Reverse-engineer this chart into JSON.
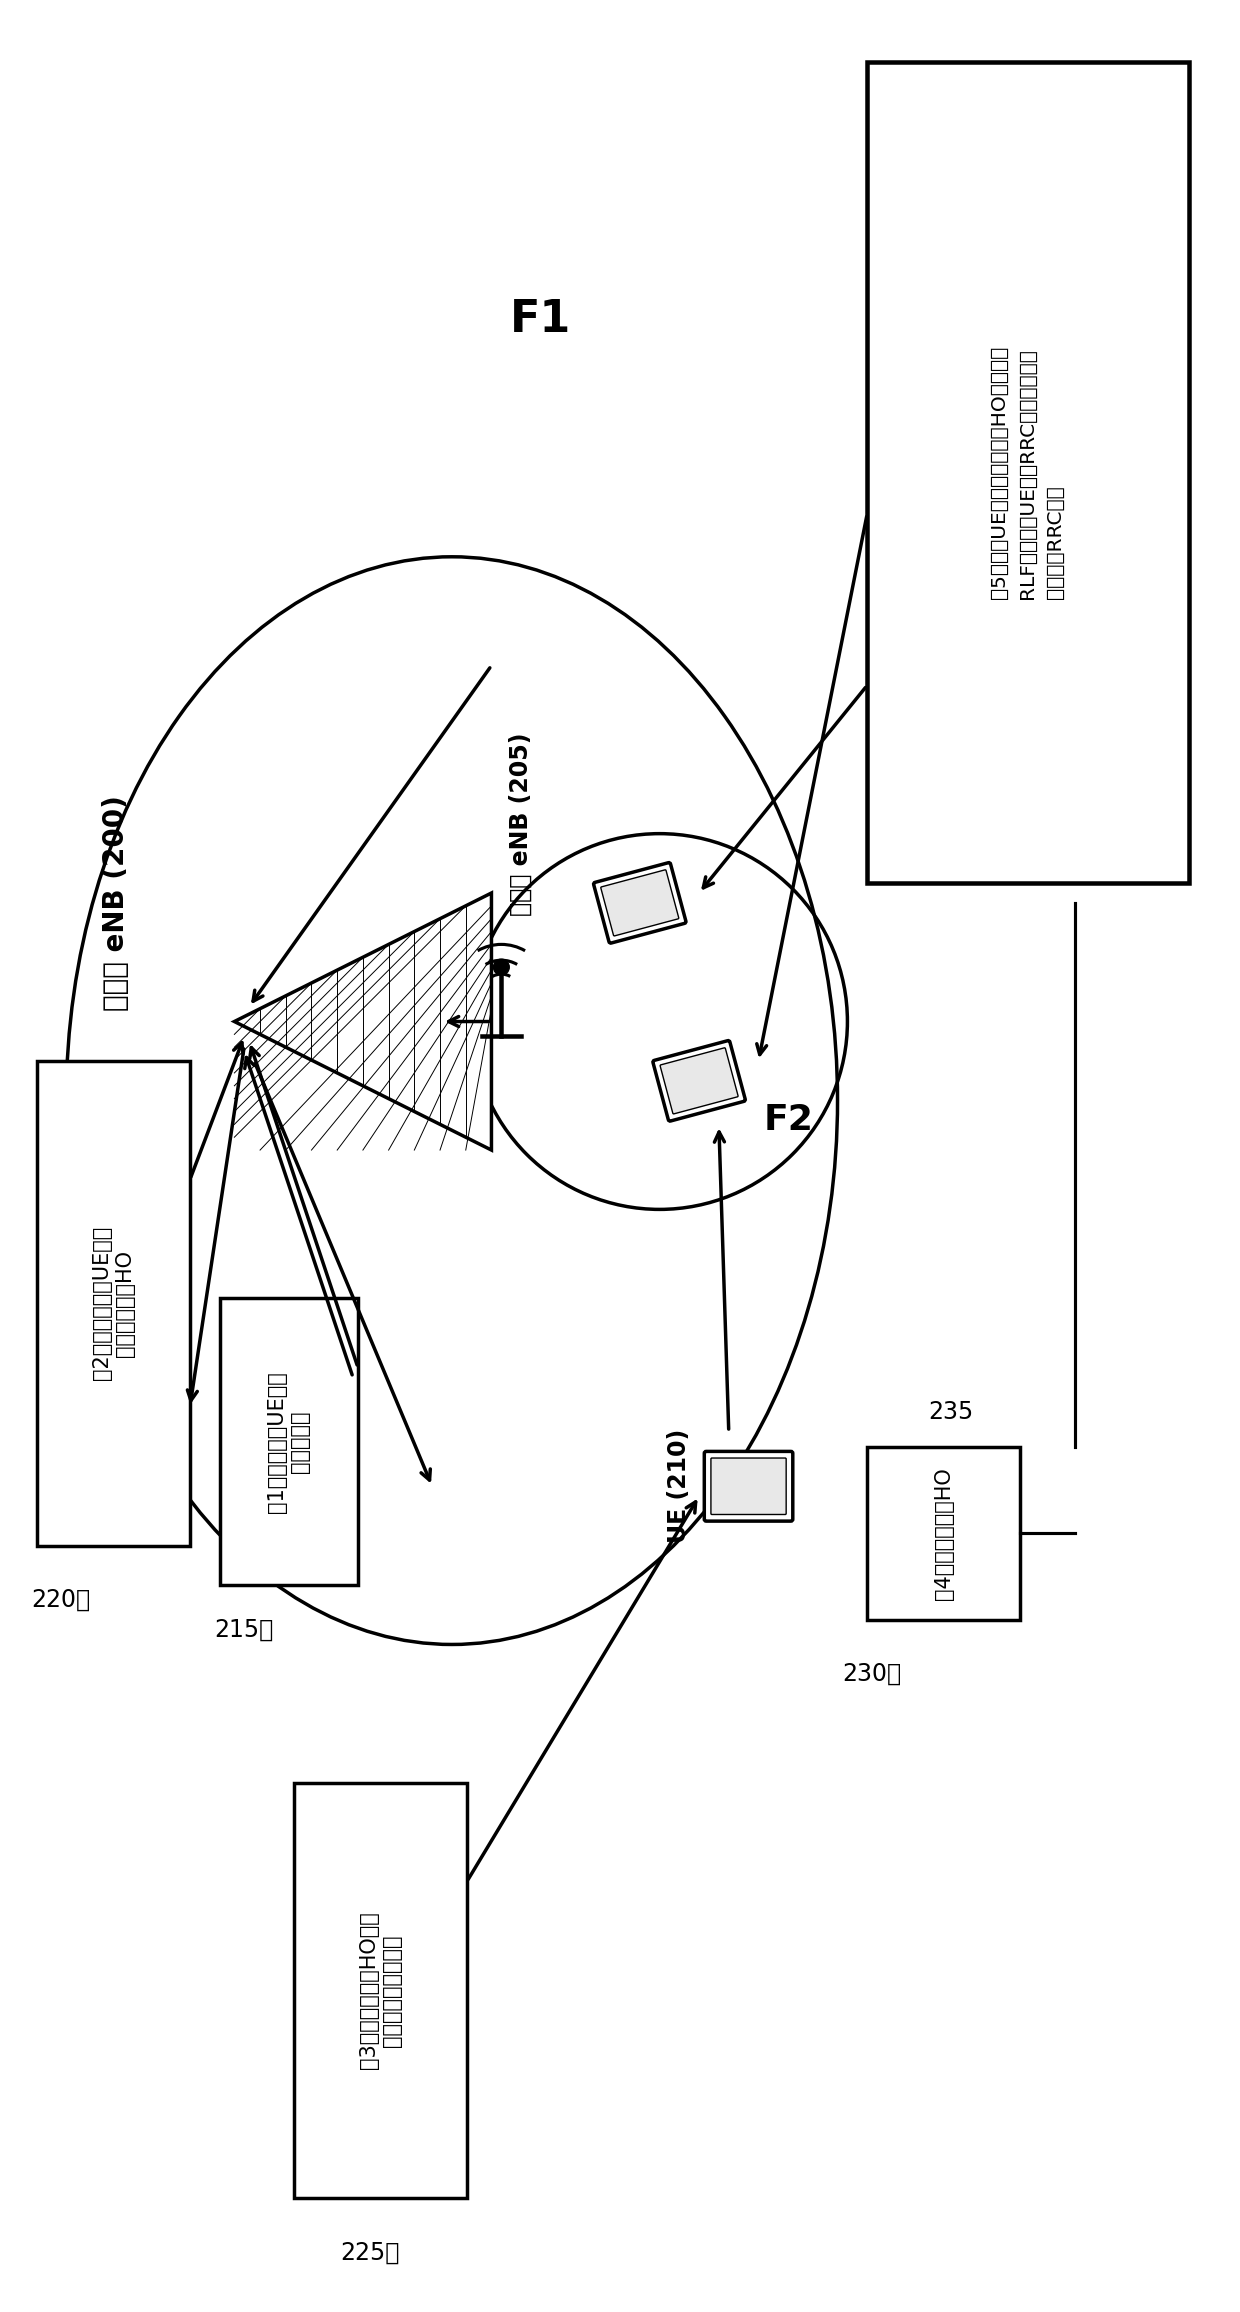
{
  "bg_color": "#ffffff",
  "fig_width": 12.4,
  "fig_height": 23.12,
  "macro_enb_label": "宏小区 eNB (200)",
  "small_enb_label": "小小区 eNB (205)",
  "ue_label": "UE (210)",
  "F1_label": "F1",
  "F2_label": "F2",
  "box_220_lines": [
    "（2）基于测量和UE速度",
    "决定是否执行HO"
  ],
  "box_220_ref": "220～",
  "box_215_lines": [
    "（1）发送包括UE速度",
    "的测量报告"
  ],
  "box_215_ref": "215～",
  "box_225_lines": [
    "（3）发送指示不HO并且",
    "包括相关配置的消息"
  ],
  "box_225_ref": "225～",
  "box_230_lines": [
    "（4）跳过频率间HO"
  ],
  "box_230_ref": "230～",
  "box_235_ref": "235",
  "box_right_lines": [
    "（5）如果UE在之前接收到不HO指示并且",
    "RLF发生，则UE跳过RRC重建，并随后",
    "直接执行RRC建立"
  ]
}
